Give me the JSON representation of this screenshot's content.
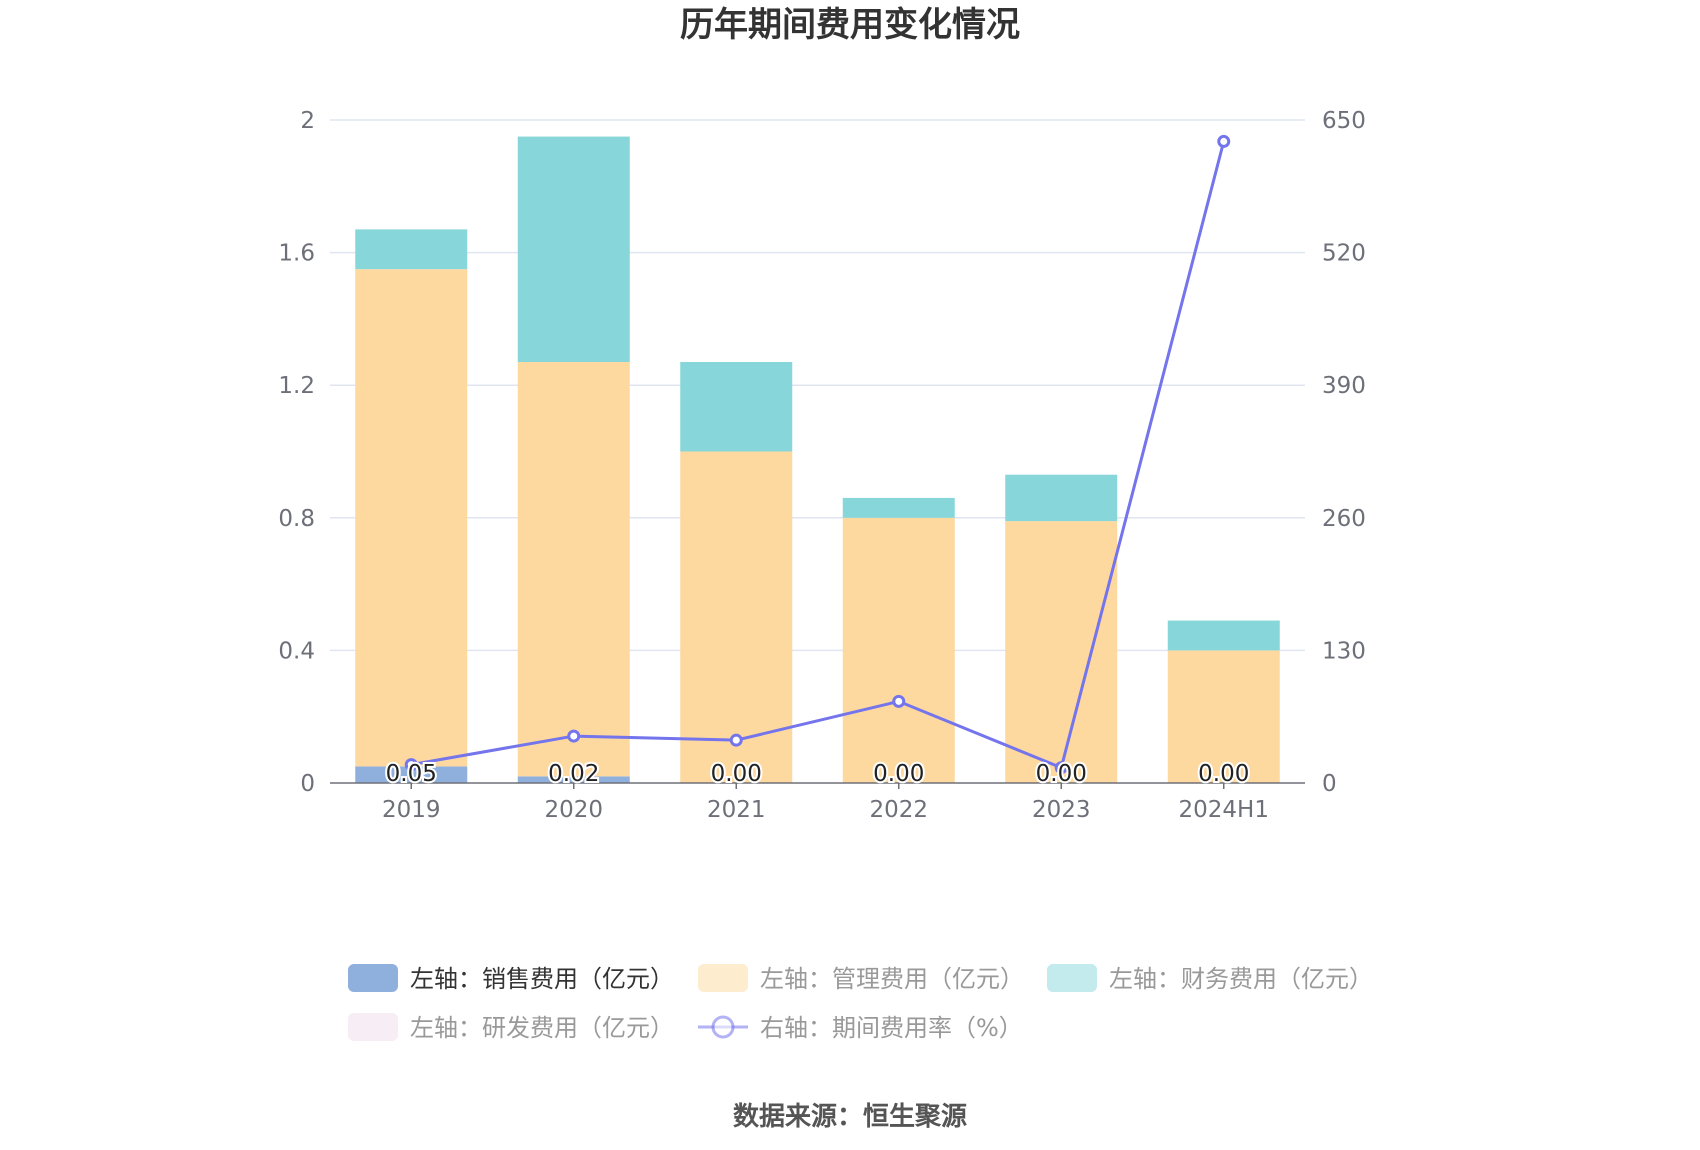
{
  "title": "历年期间费用变化情况",
  "source": "数据来源：恒生聚源",
  "colors": {
    "sales": "#8fb0dd",
    "admin": "#fdd99f",
    "finance": "#87d6d9",
    "rnd": "#f0dcec",
    "rate": "#7474ec",
    "grid": "#e0e6f1",
    "axis": "#6e7079",
    "legend_active": "#333333",
    "legend_inactive": "#999999"
  },
  "legend": [
    {
      "key": "sales",
      "label": "左轴：销售费用（亿元）",
      "type": "bar",
      "active": true
    },
    {
      "key": "admin",
      "label": "左轴：管理费用（亿元）",
      "type": "bar",
      "active": false
    },
    {
      "key": "finance",
      "label": "左轴：财务费用（亿元）",
      "type": "bar",
      "active": false
    },
    {
      "key": "rnd",
      "label": "左轴：研发费用（亿元）",
      "type": "bar",
      "active": false
    },
    {
      "key": "rate",
      "label": "右轴：期间费用率（%）",
      "type": "line",
      "active": false
    }
  ],
  "chart_data": {
    "type": "bar",
    "categories": [
      "2019",
      "2020",
      "2021",
      "2022",
      "2023",
      "2024H1"
    ],
    "y_left": {
      "ylim": [
        0,
        2
      ],
      "ticks": [
        "0",
        "0.4",
        "0.8",
        "1.2",
        "1.6",
        "2"
      ]
    },
    "y_right": {
      "ylim": [
        0,
        650
      ],
      "ticks": [
        "0",
        "130",
        "260",
        "390",
        "520",
        "650"
      ]
    },
    "series": [
      {
        "key": "sales",
        "name": "左轴：销售费用（亿元）",
        "axis": "left",
        "stack": true,
        "values": [
          0.05,
          0.02,
          0.0,
          0.0,
          0.0,
          0.0
        ],
        "labels": [
          "0.05",
          "0.02",
          "0.00",
          "0.00",
          "0.00",
          "0.00"
        ]
      },
      {
        "key": "admin",
        "name": "左轴：管理费用（亿元）",
        "axis": "left",
        "stack": true,
        "values": [
          1.5,
          1.25,
          1.0,
          0.8,
          0.79,
          0.4
        ]
      },
      {
        "key": "finance",
        "name": "左轴：财务费用（亿元）",
        "axis": "left",
        "stack": true,
        "values": [
          0.12,
          0.68,
          0.27,
          0.06,
          0.14,
          0.09
        ]
      },
      {
        "key": "rnd",
        "name": "左轴：研发费用（亿元）",
        "axis": "left",
        "stack": true,
        "values": [
          0,
          0,
          0,
          0,
          0,
          0
        ]
      },
      {
        "key": "rate",
        "name": "右轴：期间费用率（%）",
        "axis": "right",
        "type": "line",
        "values": [
          18,
          46,
          42,
          80,
          15,
          629
        ]
      }
    ]
  }
}
